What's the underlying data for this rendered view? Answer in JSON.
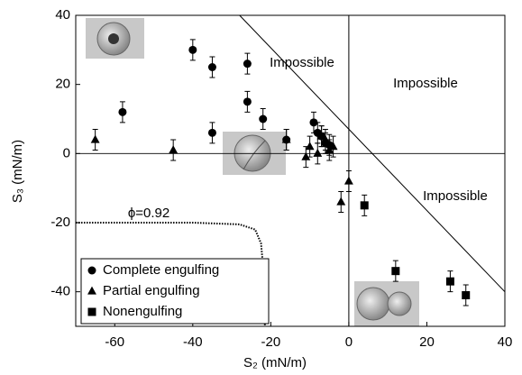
{
  "chart_data": {
    "type": "scatter",
    "xlabel": "S₂ (mN/m)",
    "ylabel": "S₃ (mN/m)",
    "xlim": [
      -70,
      40
    ],
    "xticks": [
      -60,
      -40,
      -20,
      0,
      20,
      40
    ],
    "ylim": [
      -50,
      40
    ],
    "yticks": [
      -40,
      -20,
      0,
      20,
      40
    ],
    "legend": "lower left",
    "annotations": [
      "Impossible",
      "Impossible",
      "Impossible"
    ],
    "boundary_line": {
      "x": [
        -28,
        40
      ],
      "y": [
        40,
        -40
      ]
    },
    "curve": {
      "label": "ϕ=0.92",
      "x": [
        -70,
        -40,
        -28,
        -24,
        -22.5,
        -21.8,
        -21.5
      ],
      "y": [
        -20,
        -20,
        -20.5,
        -22,
        -26,
        -35,
        -50
      ]
    },
    "series": [
      {
        "name": "Complete engulfing",
        "marker": "circle",
        "color": "#000000",
        "x": [
          -40,
          -35,
          -26,
          -58,
          -26,
          -35,
          -22,
          -16,
          -9,
          -8,
          -7,
          -6,
          -5
        ],
        "values": [
          30,
          25,
          26,
          12,
          15,
          6,
          10,
          4,
          9,
          6,
          5,
          3,
          2.5
        ],
        "errors": [
          3,
          3,
          3,
          3,
          3,
          3,
          3,
          3,
          3,
          3,
          3,
          3,
          3
        ]
      },
      {
        "name": "Partial engulfing",
        "marker": "triangle",
        "color": "#000000",
        "x": [
          -65,
          -45,
          -16,
          -11,
          -10,
          -8,
          -7,
          -6,
          -5,
          -4,
          -2,
          0
        ],
        "values": [
          4,
          1,
          4,
          -1,
          2,
          0,
          5,
          4,
          1,
          2,
          -14,
          -8
        ],
        "errors": [
          3,
          3,
          3,
          3,
          3,
          3,
          3,
          3,
          3,
          3,
          3,
          3
        ]
      },
      {
        "name": "Nonengulfing",
        "marker": "square",
        "color": "#000000",
        "x": [
          4,
          12,
          26,
          30
        ],
        "values": [
          -15,
          -34,
          -37,
          -41
        ],
        "errors": [
          3,
          3,
          3,
          3
        ]
      }
    ]
  }
}
